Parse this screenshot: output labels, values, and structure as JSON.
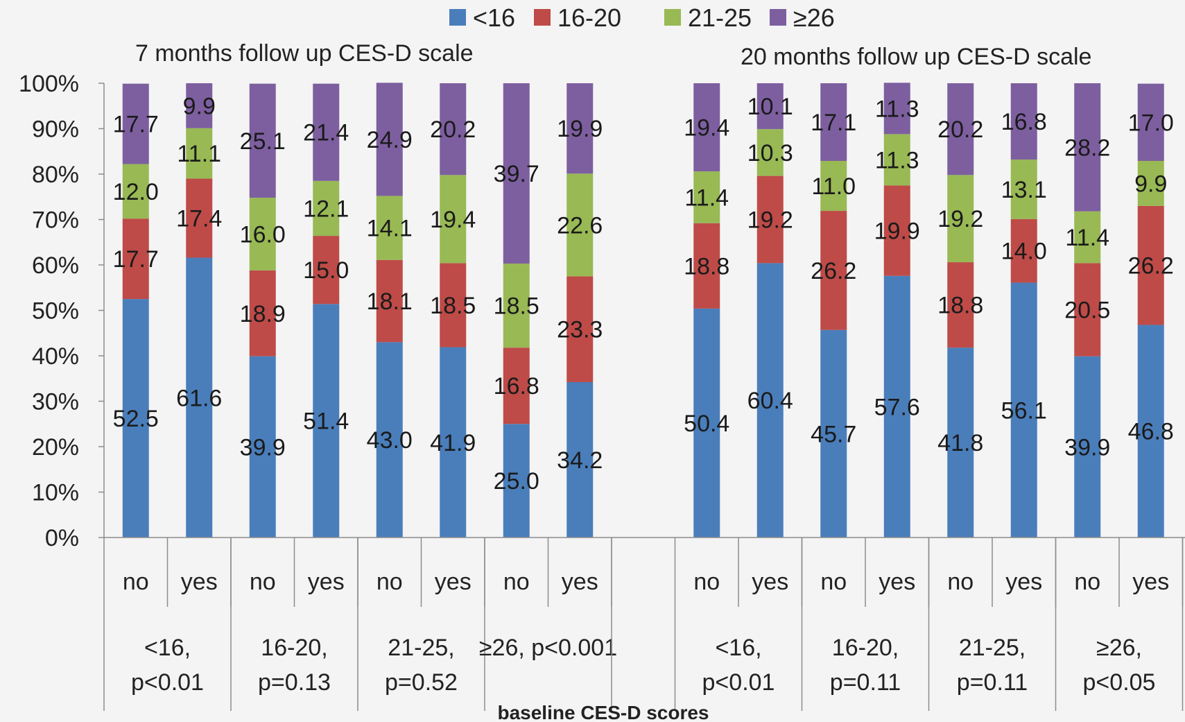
{
  "chart_data": {
    "type": "bar",
    "stacked": true,
    "xlabel": "baseline CES-D scores",
    "ylim": [
      0,
      100
    ],
    "yticks": [
      "0%",
      "10%",
      "20%",
      "30%",
      "40%",
      "50%",
      "60%",
      "70%",
      "80%",
      "90%",
      "100%"
    ],
    "legend": {
      "position": "top",
      "entries": [
        {
          "name": "<16",
          "color": "#4a7ebb"
        },
        {
          "name": "16-20",
          "color": "#be4b48"
        },
        {
          "name": "21-25",
          "color": "#98b954"
        },
        {
          "name": "≥26",
          "color": "#7d5fa0"
        }
      ]
    },
    "panels": [
      {
        "title": "7 months  follow up CES-D scale",
        "groups": [
          {
            "label_line1": "<16,",
            "label_line2": "p<0.01",
            "bars": [
              {
                "category": "no",
                "values": [
                  52.5,
                  17.7,
                  12.0,
                  17.7
                ]
              },
              {
                "category": "yes",
                "values": [
                  61.6,
                  17.4,
                  11.1,
                  9.9
                ]
              }
            ]
          },
          {
            "label_line1": "16-20,",
            "label_line2": "p=0.13",
            "bars": [
              {
                "category": "no",
                "values": [
                  39.9,
                  18.9,
                  16.0,
                  25.1
                ]
              },
              {
                "category": "yes",
                "values": [
                  51.4,
                  15.0,
                  12.1,
                  21.4
                ]
              }
            ]
          },
          {
            "label_line1": "21-25,",
            "label_line2": "p=0.52",
            "bars": [
              {
                "category": "no",
                "values": [
                  43.0,
                  18.1,
                  14.1,
                  24.9
                ]
              },
              {
                "category": "yes",
                "values": [
                  41.9,
                  18.5,
                  19.4,
                  20.2
                ]
              }
            ]
          },
          {
            "label_line1": "≥26, p<0.001",
            "label_line2": "",
            "bars": [
              {
                "category": "no",
                "values": [
                  25.0,
                  16.8,
                  18.5,
                  39.7
                ]
              },
              {
                "category": "yes",
                "values": [
                  34.2,
                  23.3,
                  22.6,
                  19.9
                ]
              }
            ]
          }
        ]
      },
      {
        "title": "20 months follow up CES-D scale",
        "groups": [
          {
            "label_line1": "<16,",
            "label_line2": "p<0.01",
            "bars": [
              {
                "category": "no",
                "values": [
                  50.4,
                  18.8,
                  11.4,
                  19.4
                ]
              },
              {
                "category": "yes",
                "values": [
                  60.4,
                  19.2,
                  10.3,
                  10.1
                ]
              }
            ]
          },
          {
            "label_line1": "16-20,",
            "label_line2": "p=0.11",
            "bars": [
              {
                "category": "no",
                "values": [
                  45.7,
                  26.2,
                  11.0,
                  17.1
                ]
              },
              {
                "category": "yes",
                "values": [
                  57.6,
                  19.9,
                  11.3,
                  11.3
                ]
              }
            ]
          },
          {
            "label_line1": "21-25,",
            "label_line2": "p=0.11",
            "bars": [
              {
                "category": "no",
                "values": [
                  41.8,
                  18.8,
                  19.2,
                  20.2
                ]
              },
              {
                "category": "yes",
                "values": [
                  56.1,
                  14.0,
                  13.1,
                  16.8
                ]
              }
            ]
          },
          {
            "label_line1": "≥26,",
            "label_line2": "p<0.05",
            "bars": [
              {
                "category": "no",
                "values": [
                  39.9,
                  20.5,
                  11.4,
                  28.2
                ]
              },
              {
                "category": "yes",
                "values": [
                  46.8,
                  26.2,
                  9.9,
                  17.0
                ]
              }
            ]
          }
        ]
      }
    ]
  }
}
